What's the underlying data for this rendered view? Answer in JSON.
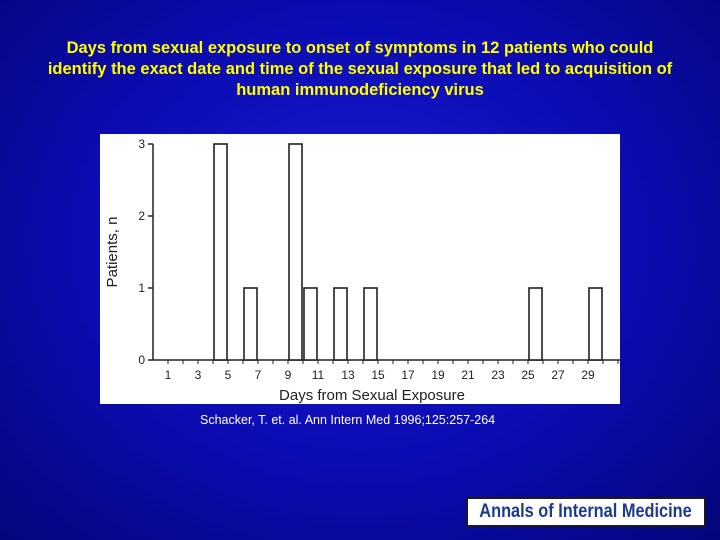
{
  "slide": {
    "title_lines": [
      "Days from sexual exposure to onset of symptoms in 12 patients who could",
      "identify the exact date and time of the sexual exposure that led to acquisition of",
      "human immunodeficiency virus"
    ],
    "citation": "Schacker, T. et. al. Ann Intern Med 1996;125:257-264",
    "logo_text": "Annals of Internal Medicine"
  },
  "colors": {
    "title": "#ffff00",
    "background": "#0b0bb0",
    "logo_text": "#1e3a8c"
  },
  "chart_data": {
    "type": "bar",
    "xlabel": "Days from Sexual Exposure",
    "ylabel": "Patients, n",
    "xlim": [
      0,
      31
    ],
    "ylim": [
      0,
      3
    ],
    "x_tick_labels": [
      "1",
      "3",
      "5",
      "7",
      "9",
      "11",
      "13",
      "15",
      "17",
      "19",
      "21",
      "23",
      "25",
      "27",
      "29"
    ],
    "y_tick_labels": [
      "0",
      "1",
      "2",
      "3"
    ],
    "grid": false,
    "x": [
      5,
      7,
      10,
      11,
      13,
      15,
      26,
      30
    ],
    "values": [
      3,
      1,
      3,
      1,
      1,
      1,
      1,
      1
    ]
  }
}
